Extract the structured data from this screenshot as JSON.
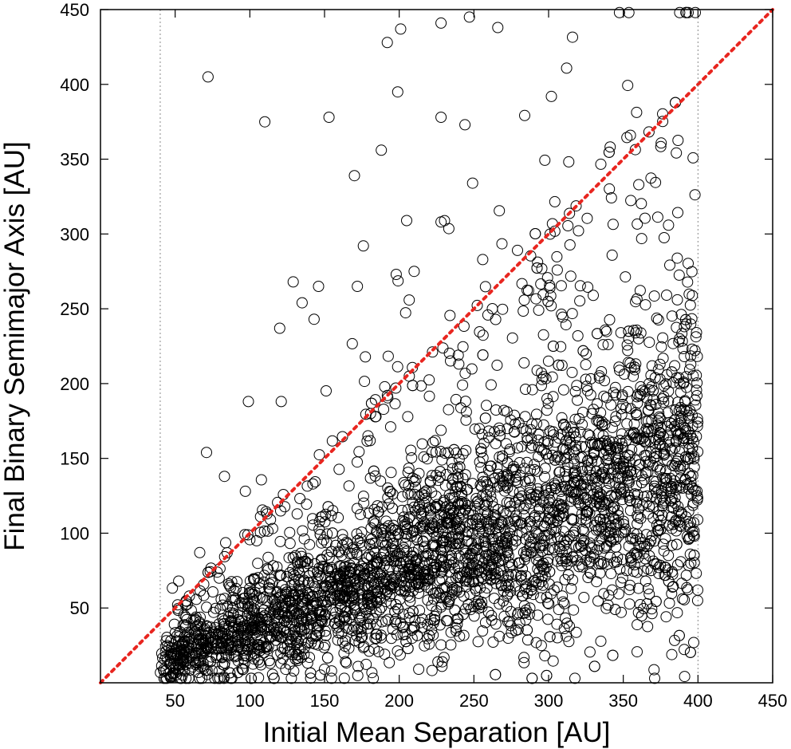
{
  "chart_data": {
    "type": "scatter",
    "title": "",
    "xlabel": "Initial Mean Separation [AU]",
    "ylabel": "Final Binary Semimajor Axis [AU]",
    "xlim": [
      0,
      450
    ],
    "ylim": [
      0,
      450
    ],
    "xticks": [
      50,
      100,
      150,
      200,
      250,
      300,
      350,
      400,
      450
    ],
    "yticks": [
      50,
      100,
      150,
      200,
      250,
      300,
      350,
      400,
      450
    ],
    "grid": false,
    "legend": "none",
    "marker": "open-circle",
    "marker_color": "#000000",
    "reference_lines": [
      {
        "name": "y = x",
        "style": "dotted",
        "color": "#e8251f",
        "from": [
          0,
          0
        ],
        "to": [
          450,
          450
        ]
      },
      {
        "style": "thin-dotted",
        "color": "#888888",
        "x": 40
      },
      {
        "style": "thin-dotted",
        "color": "#888888",
        "x": 400
      }
    ],
    "distribution": {
      "x_range": [
        40,
        400
      ],
      "point_count_approx": 9000,
      "trend": "y increases roughly as 0.37*x with scatter growing with x; outliers up to y=x and above",
      "sample_points": [
        [
          72,
          405
        ],
        [
          110,
          375
        ],
        [
          153,
          378
        ],
        [
          192,
          428
        ],
        [
          201,
          437
        ],
        [
          228,
          441
        ],
        [
          266,
          438
        ],
        [
          247,
          445
        ],
        [
          170,
          339
        ],
        [
          188,
          356
        ],
        [
          199,
          395
        ],
        [
          205,
          309
        ],
        [
          228,
          308
        ],
        [
          228,
          378
        ],
        [
          244,
          373
        ],
        [
          99,
          188
        ],
        [
          121,
          188
        ],
        [
          71,
          154
        ],
        [
          83,
          138
        ],
        [
          97,
          128
        ],
        [
          120,
          237
        ],
        [
          129,
          268
        ],
        [
          135,
          254
        ],
        [
          143,
          243
        ],
        [
          146,
          265
        ],
        [
          172,
          265
        ],
        [
          176,
          292
        ],
        [
          198,
          273
        ],
        [
          210,
          275
        ],
        [
          50,
          20
        ],
        [
          80,
          32
        ],
        [
          100,
          40
        ],
        [
          150,
          55
        ],
        [
          200,
          75
        ],
        [
          250,
          90
        ],
        [
          300,
          110
        ],
        [
          350,
          130
        ],
        [
          390,
          145
        ]
      ]
    }
  }
}
